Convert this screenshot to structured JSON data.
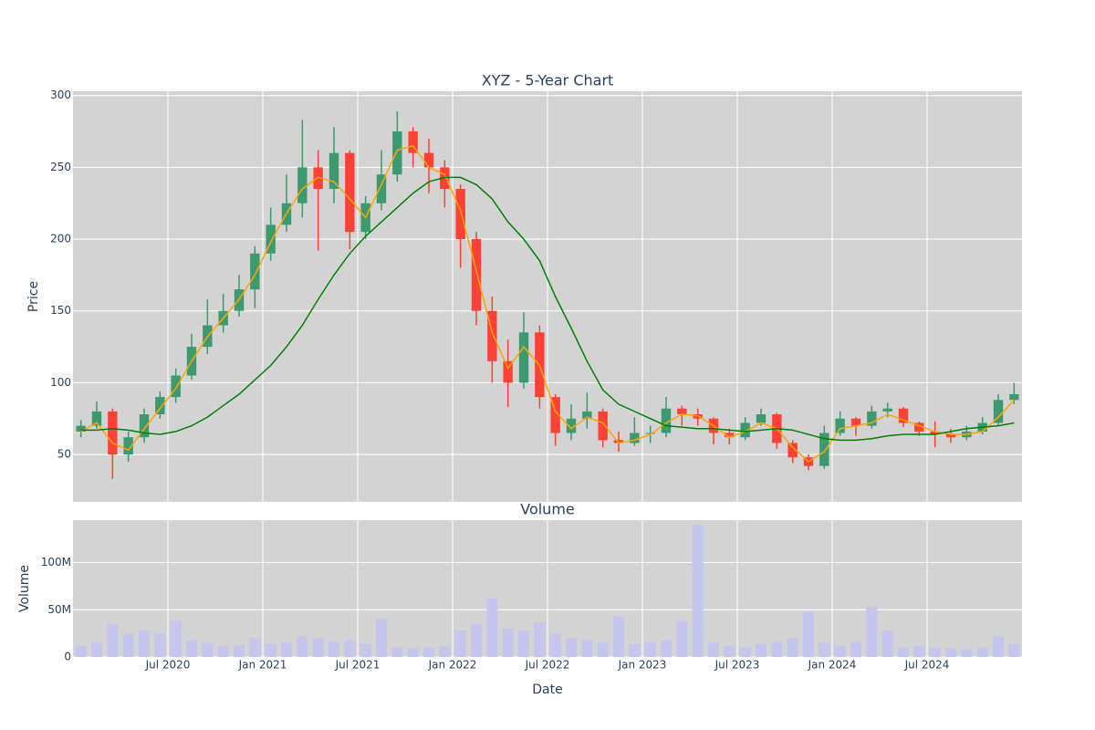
{
  "chart_data": [
    {
      "type": "candlestick",
      "title": "XYZ - 5-Year Chart",
      "y_label": "Price",
      "increasing_color": "#3d9970",
      "decreasing_color": "#ff4136",
      "x": [
        "2020-01",
        "2020-02",
        "2020-03",
        "2020-04",
        "2020-05",
        "2020-06",
        "2020-07",
        "2020-08",
        "2020-09",
        "2020-10",
        "2020-11",
        "2020-12",
        "2021-01",
        "2021-02",
        "2021-03",
        "2021-04",
        "2021-05",
        "2021-06",
        "2021-07",
        "2021-08",
        "2021-09",
        "2021-10",
        "2021-11",
        "2021-12",
        "2022-01",
        "2022-02",
        "2022-03",
        "2022-04",
        "2022-05",
        "2022-06",
        "2022-07",
        "2022-08",
        "2022-09",
        "2022-10",
        "2022-11",
        "2022-12",
        "2023-01",
        "2023-02",
        "2023-03",
        "2023-04",
        "2023-05",
        "2023-06",
        "2023-07",
        "2023-08",
        "2023-09",
        "2023-10",
        "2023-11",
        "2023-12",
        "2024-01",
        "2024-02",
        "2024-03",
        "2024-04",
        "2024-05",
        "2024-06",
        "2024-07",
        "2024-08",
        "2024-09",
        "2024-10",
        "2024-11",
        "2024-12"
      ],
      "open": [
        66,
        70,
        80,
        50,
        62,
        78,
        90,
        105,
        125,
        140,
        150,
        165,
        190,
        210,
        225,
        250,
        235,
        260,
        205,
        225,
        245,
        275,
        260,
        250,
        235,
        200,
        150,
        115,
        100,
        135,
        90,
        65,
        75,
        80,
        60,
        58,
        65,
        65,
        82,
        78,
        75,
        65,
        62,
        72,
        78,
        58,
        48,
        42,
        65,
        75,
        70,
        80,
        82,
        72,
        66,
        64,
        62,
        66,
        72,
        88
      ],
      "high": [
        74,
        87,
        82,
        66,
        82,
        94,
        110,
        134,
        158,
        162,
        175,
        195,
        222,
        245,
        283,
        262,
        278,
        262,
        230,
        262,
        289,
        278,
        270,
        255,
        238,
        205,
        160,
        130,
        149,
        140,
        92,
        85,
        93,
        82,
        66,
        76,
        70,
        90,
        84,
        82,
        76,
        68,
        76,
        82,
        79,
        60,
        50,
        70,
        80,
        76,
        84,
        86,
        83,
        73,
        73,
        68,
        70,
        76,
        92,
        100
      ],
      "low": [
        62,
        68,
        33,
        45,
        58,
        75,
        86,
        102,
        120,
        135,
        146,
        152,
        185,
        205,
        215,
        192,
        225,
        193,
        200,
        220,
        240,
        250,
        232,
        222,
        180,
        140,
        100,
        83,
        96,
        82,
        56,
        60,
        68,
        55,
        52,
        56,
        58,
        62,
        70,
        70,
        57,
        57,
        60,
        70,
        54,
        44,
        39,
        40,
        63,
        63,
        68,
        76,
        69,
        63,
        55,
        58,
        60,
        64,
        70,
        85
      ],
      "close": [
        70,
        80,
        50,
        62,
        78,
        90,
        105,
        125,
        140,
        150,
        165,
        190,
        210,
        225,
        250,
        235,
        260,
        205,
        225,
        245,
        275,
        260,
        250,
        235,
        200,
        150,
        115,
        100,
        135,
        90,
        65,
        75,
        80,
        60,
        58,
        65,
        65,
        82,
        78,
        75,
        65,
        62,
        72,
        78,
        58,
        48,
        42,
        65,
        75,
        70,
        80,
        82,
        72,
        66,
        64,
        62,
        66,
        72,
        88,
        92
      ],
      "series": [
        {
          "color": "#ffa500",
          "values": [
            66,
            72,
            58,
            53,
            68,
            82,
            96,
            115,
            132,
            145,
            158,
            175,
            198,
            218,
            235,
            243,
            240,
            228,
            215,
            238,
            262,
            265,
            250,
            245,
            220,
            178,
            135,
            110,
            125,
            112,
            80,
            68,
            76,
            72,
            58,
            60,
            64,
            72,
            78,
            77,
            70,
            62,
            66,
            72,
            68,
            55,
            45,
            52,
            68,
            70,
            72,
            78,
            74,
            70,
            66,
            64,
            64,
            66,
            76,
            88
          ]
        },
        {
          "color": "#008000",
          "values": [
            67,
            67,
            68,
            67,
            65,
            64,
            66,
            70,
            76,
            84,
            92,
            102,
            112,
            125,
            140,
            158,
            175,
            190,
            202,
            212,
            222,
            232,
            240,
            243,
            243,
            238,
            228,
            212,
            200,
            185,
            160,
            138,
            115,
            95,
            85,
            80,
            75,
            70,
            69,
            68,
            68,
            67,
            66,
            67,
            68,
            67,
            64,
            61,
            60,
            60,
            61,
            63,
            64,
            64,
            64,
            66,
            68,
            69,
            70,
            72
          ]
        }
      ],
      "ylim": [
        17,
        303
      ],
      "yticks": [
        50,
        100,
        150,
        200,
        250,
        300
      ],
      "grid": true
    },
    {
      "type": "bar",
      "title": "Volume",
      "x_label": "Date",
      "y_label": "Volume",
      "color": "#c5c5ee",
      "values": [
        12000000,
        15000000,
        35000000,
        25000000,
        28000000,
        25000000,
        38000000,
        18000000,
        15000000,
        12000000,
        13000000,
        20000000,
        14000000,
        15000000,
        22000000,
        20000000,
        16000000,
        18000000,
        14000000,
        40000000,
        10000000,
        9000000,
        10000000,
        12000000,
        28000000,
        35000000,
        62000000,
        30000000,
        28000000,
        37000000,
        25000000,
        20000000,
        18000000,
        15000000,
        43000000,
        14000000,
        16000000,
        18000000,
        38000000,
        140000000,
        15000000,
        12000000,
        10000000,
        14000000,
        16000000,
        20000000,
        48000000,
        15000000,
        12000000,
        16000000,
        53000000,
        28000000,
        10000000,
        12000000,
        10000000,
        9000000,
        8000000,
        10000000,
        22000000,
        14000000
      ],
      "xlim": [
        "2020-01",
        "2025-01"
      ],
      "xticks": [
        {
          "value": "2020-07",
          "label": "Jul 2020"
        },
        {
          "value": "2021-01",
          "label": "Jan 2021"
        },
        {
          "value": "2021-07",
          "label": "Jul 2021"
        },
        {
          "value": "2022-01",
          "label": "Jan 2022"
        },
        {
          "value": "2022-07",
          "label": "Jul 2022"
        },
        {
          "value": "2023-01",
          "label": "Jan 2023"
        },
        {
          "value": "2023-07",
          "label": "Jul 2023"
        },
        {
          "value": "2024-01",
          "label": "Jan 2024"
        },
        {
          "value": "2024-07",
          "label": "Jul 2024"
        }
      ],
      "ylim": [
        0,
        145000000
      ],
      "yticks": [
        0,
        {
          "value": 50000000,
          "label": "50M"
        },
        {
          "value": 100000000,
          "label": "100M"
        }
      ],
      "grid": true
    }
  ]
}
